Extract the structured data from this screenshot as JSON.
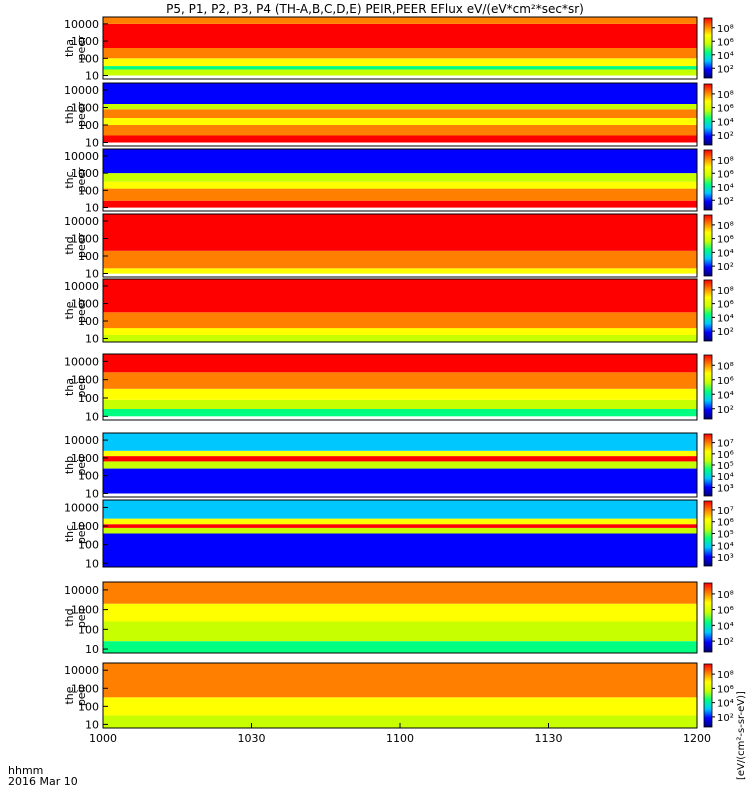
{
  "chart_data": {
    "type": "heatmap",
    "title": "P5, P1, P2, P3, P4 (TH-A,B,C,D,E) PEIR,PEER EFlux eV/(eV*cm²*sec*sr)",
    "time_axis": {
      "range": [
        "1000",
        "1200"
      ],
      "tick_labels": [
        "1000",
        "1030",
        "1100",
        "1130",
        "1200"
      ],
      "label_top": "hhmm",
      "label_bottom": "2016 Mar 10"
    },
    "y_tick_labels": [
      "10",
      "100",
      "1000",
      "10000"
    ],
    "y_scale": "log",
    "colorbar_label": "[eV/(cm²-s-sr-eV)]",
    "colorbar_scale": "log",
    "palette": [
      "#00007a",
      "#0000ff",
      "#00c8ff",
      "#00ff80",
      "#c8ff00",
      "#ffff00",
      "#ff8000",
      "#ff0000"
    ],
    "panels": [
      {
        "label_1": "tha",
        "label_2": "peer",
        "colorbar_ticks": [
          "10²",
          "10⁴",
          "10⁶",
          "10⁸"
        ],
        "bands": [
          {
            "from": 1.0,
            "to": 1.35,
            "level": 4
          },
          {
            "from": 1.35,
            "to": 1.55,
            "level": 3
          },
          {
            "from": 1.55,
            "to": 2.0,
            "level": 5
          },
          {
            "from": 2.0,
            "to": 2.6,
            "level": 6
          },
          {
            "from": 2.6,
            "to": 4.0,
            "level": 7
          },
          {
            "from": 4.0,
            "to": 4.4,
            "level": 6
          }
        ]
      },
      {
        "label_1": "thb",
        "label_2": "peer",
        "colorbar_ticks": [
          "10²",
          "10⁴",
          "10⁶",
          "10⁸"
        ],
        "bands": [
          {
            "from": 1.0,
            "to": 1.4,
            "level": 7
          },
          {
            "from": 1.4,
            "to": 2.0,
            "level": 6
          },
          {
            "from": 2.0,
            "to": 2.4,
            "level": 5
          },
          {
            "from": 2.4,
            "to": 2.9,
            "level": 6
          },
          {
            "from": 2.9,
            "to": 3.2,
            "level": 4
          },
          {
            "from": 3.2,
            "to": 4.4,
            "level": 1
          }
        ]
      },
      {
        "label_1": "thc",
        "label_2": "peer",
        "colorbar_ticks": [
          "10²",
          "10⁴",
          "10⁶",
          "10⁸"
        ],
        "bands": [
          {
            "from": 1.0,
            "to": 1.4,
            "level": 7
          },
          {
            "from": 1.4,
            "to": 2.1,
            "level": 6
          },
          {
            "from": 2.1,
            "to": 2.5,
            "level": 5
          },
          {
            "from": 2.5,
            "to": 3.0,
            "level": 4
          },
          {
            "from": 3.0,
            "to": 4.4,
            "level": 1
          }
        ]
      },
      {
        "label_1": "thd",
        "label_2": "peer",
        "colorbar_ticks": [
          "10²",
          "10⁴",
          "10⁶",
          "10⁸"
        ],
        "bands": [
          {
            "from": 1.0,
            "to": 1.3,
            "level": 5
          },
          {
            "from": 1.3,
            "to": 2.3,
            "level": 6
          },
          {
            "from": 2.3,
            "to": 4.4,
            "level": 7
          }
        ]
      },
      {
        "label_1": "the",
        "label_2": "peer",
        "colorbar_ticks": [
          "10²",
          "10⁴",
          "10⁶",
          "10⁸"
        ],
        "bands": [
          {
            "from": 0.8,
            "to": 1.2,
            "level": 4
          },
          {
            "from": 1.2,
            "to": 1.6,
            "level": 5
          },
          {
            "from": 1.6,
            "to": 2.5,
            "level": 6
          },
          {
            "from": 2.5,
            "to": 4.4,
            "level": 7
          }
        ]
      },
      {
        "label_1": "tha",
        "label_2": "peir",
        "colorbar_ticks": [
          "10²",
          "10⁴",
          "10⁶",
          "10⁸"
        ],
        "bands": [
          {
            "from": 1.0,
            "to": 1.4,
            "level": 3
          },
          {
            "from": 1.4,
            "to": 1.9,
            "level": 4
          },
          {
            "from": 1.9,
            "to": 2.5,
            "level": 5
          },
          {
            "from": 2.5,
            "to": 3.4,
            "level": 6
          },
          {
            "from": 3.4,
            "to": 4.4,
            "level": 7
          }
        ]
      },
      {
        "label_1": "thb",
        "label_2": "peir",
        "colorbar_ticks": [
          "10³",
          "10⁴",
          "10⁵",
          "10⁶",
          "10⁷"
        ],
        "bands": [
          {
            "from": 1.0,
            "to": 2.4,
            "level": 1
          },
          {
            "from": 2.4,
            "to": 2.8,
            "level": 4
          },
          {
            "from": 2.8,
            "to": 3.1,
            "level": 7
          },
          {
            "from": 3.1,
            "to": 3.4,
            "level": 5
          },
          {
            "from": 3.4,
            "to": 4.4,
            "level": 2
          }
        ]
      },
      {
        "label_1": "thc",
        "label_2": "peir",
        "colorbar_ticks": [
          "10³",
          "10⁴",
          "10⁵",
          "10⁶",
          "10⁷"
        ],
        "bands": [
          {
            "from": 0.8,
            "to": 2.6,
            "level": 1
          },
          {
            "from": 2.6,
            "to": 2.9,
            "level": 4
          },
          {
            "from": 2.9,
            "to": 3.1,
            "level": 7
          },
          {
            "from": 3.1,
            "to": 3.4,
            "level": 5
          },
          {
            "from": 3.4,
            "to": 4.4,
            "level": 2
          }
        ]
      },
      {
        "label_1": "thd",
        "label_2": "peir",
        "colorbar_ticks": [
          "10²",
          "10⁴",
          "10⁶",
          "10⁸"
        ],
        "bands": [
          {
            "from": 0.8,
            "to": 1.4,
            "level": 3
          },
          {
            "from": 1.4,
            "to": 2.4,
            "level": 4
          },
          {
            "from": 2.4,
            "to": 3.3,
            "level": 5
          },
          {
            "from": 3.3,
            "to": 4.4,
            "level": 6
          }
        ]
      },
      {
        "label_1": "the",
        "label_2": "peir",
        "colorbar_ticks": [
          "10²",
          "10⁴",
          "10⁶",
          "10⁸"
        ],
        "bands": [
          {
            "from": 0.8,
            "to": 1.5,
            "level": 4
          },
          {
            "from": 1.5,
            "to": 2.5,
            "level": 5
          },
          {
            "from": 2.5,
            "to": 4.4,
            "level": 6
          }
        ]
      }
    ]
  }
}
